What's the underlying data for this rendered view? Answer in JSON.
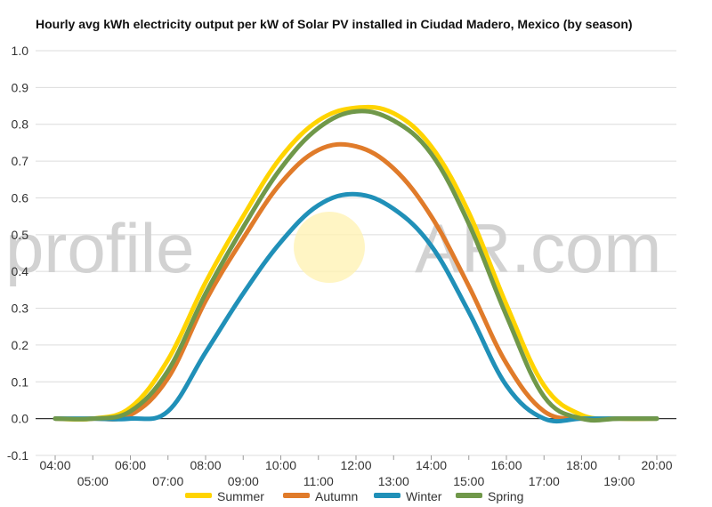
{
  "chart_data": {
    "type": "line",
    "title": "Hourly avg kWh electricity output per kW of Solar PV installed in Ciudad Madero, Mexico (by season)",
    "xlabel": "",
    "ylabel": "",
    "x": [
      "04:00",
      "05:00",
      "06:00",
      "07:00",
      "08:00",
      "09:00",
      "10:00",
      "11:00",
      "12:00",
      "13:00",
      "14:00",
      "15:00",
      "16:00",
      "17:00",
      "18:00",
      "19:00",
      "20:00"
    ],
    "ylim": [
      -0.1,
      1.0
    ],
    "yticks": [
      "-0.1",
      "0.0",
      "0.1",
      "0.2",
      "0.3",
      "0.4",
      "0.5",
      "0.6",
      "0.7",
      "0.8",
      "0.9",
      "1.0"
    ],
    "grid": true,
    "legend_position": "bottom",
    "series": [
      {
        "name": "Summer",
        "color": "#ffd400",
        "values": [
          0.0,
          0.0,
          0.03,
          0.16,
          0.37,
          0.55,
          0.71,
          0.81,
          0.845,
          0.83,
          0.74,
          0.56,
          0.31,
          0.09,
          0.01,
          0.0,
          0.0
        ]
      },
      {
        "name": "Autumn",
        "color": "#e07b2a",
        "values": [
          0.0,
          0.0,
          0.01,
          0.11,
          0.32,
          0.49,
          0.64,
          0.73,
          0.74,
          0.68,
          0.55,
          0.36,
          0.15,
          0.02,
          0.0,
          0.0,
          0.0
        ]
      },
      {
        "name": "Winter",
        "color": "#2090b8",
        "values": [
          0.0,
          0.0,
          0.0,
          0.02,
          0.18,
          0.34,
          0.48,
          0.58,
          0.61,
          0.57,
          0.47,
          0.29,
          0.09,
          0.0,
          0.0,
          0.0,
          0.0
        ]
      },
      {
        "name": "Spring",
        "color": "#70984a",
        "values": [
          0.0,
          0.0,
          0.02,
          0.13,
          0.34,
          0.52,
          0.68,
          0.79,
          0.835,
          0.81,
          0.72,
          0.53,
          0.28,
          0.06,
          0.0,
          0.0,
          0.0
        ]
      }
    ]
  },
  "watermark": {
    "text_left": "profile",
    "text_right": "AR.com",
    "sun_color": "#fff1b0"
  }
}
